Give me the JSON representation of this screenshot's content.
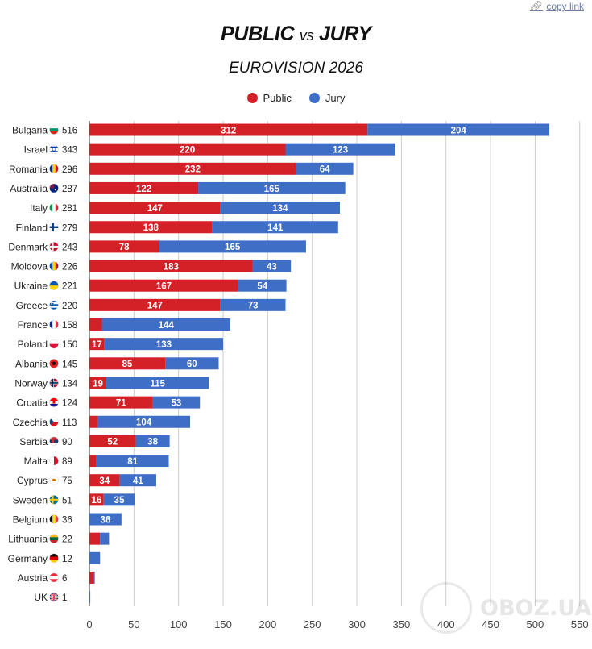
{
  "header": {
    "copy_link_label": "copy link",
    "copy_link_icon": "link-icon"
  },
  "chart_data": {
    "type": "bar",
    "orientation": "horizontal",
    "stacked": true,
    "title_left": "PUBLIC",
    "title_vs": "vs",
    "title_right": "JURY",
    "subtitle": "EUROVISION 2026",
    "legend_position": "top",
    "grid": true,
    "xlim": [
      0,
      550
    ],
    "x_ticks": [
      0,
      50,
      100,
      150,
      200,
      250,
      300,
      350,
      400,
      450,
      500,
      550
    ],
    "categories": [
      "Bulgaria",
      "Israel",
      "Romania",
      "Australia",
      "Italy",
      "Finland",
      "Denmark",
      "Moldova",
      "Ukraine",
      "Greece",
      "France",
      "Poland",
      "Albania",
      "Norway",
      "Croatia",
      "Czechia",
      "Serbia",
      "Malta",
      "Cyprus",
      "Sweden",
      "Belgium",
      "Lithuania",
      "Germany",
      "Austria",
      "UK"
    ],
    "flags": [
      "flag-bulgaria-icon",
      "flag-israel-icon",
      "flag-romania-icon",
      "flag-australia-icon",
      "flag-italy-icon",
      "flag-finland-icon",
      "flag-denmark-icon",
      "flag-moldova-icon",
      "flag-ukraine-icon",
      "flag-greece-icon",
      "flag-france-icon",
      "flag-poland-icon",
      "flag-albania-icon",
      "flag-norway-icon",
      "flag-croatia-icon",
      "flag-czechia-icon",
      "flag-serbia-icon",
      "flag-malta-icon",
      "flag-cyprus-icon",
      "flag-sweden-icon",
      "flag-belgium-icon",
      "flag-lithuania-icon",
      "flag-germany-icon",
      "flag-austria-icon",
      "flag-uk-icon"
    ],
    "totals": [
      516,
      343,
      296,
      287,
      281,
      279,
      243,
      226,
      221,
      220,
      158,
      150,
      145,
      134,
      124,
      113,
      90,
      89,
      75,
      51,
      36,
      22,
      12,
      6,
      1
    ],
    "series": [
      {
        "name": "Public",
        "color": "#d42027",
        "values": [
          312,
          220,
          232,
          122,
          147,
          138,
          78,
          183,
          167,
          147,
          14,
          17,
          85,
          19,
          71,
          9,
          52,
          8,
          34,
          16,
          0,
          12,
          0,
          5,
          0
        ],
        "labels_shown": [
          true,
          true,
          true,
          true,
          true,
          true,
          true,
          true,
          true,
          true,
          false,
          true,
          true,
          true,
          true,
          false,
          true,
          false,
          true,
          true,
          false,
          false,
          false,
          false,
          false
        ]
      },
      {
        "name": "Jury",
        "color": "#3e6ec6",
        "values": [
          204,
          123,
          64,
          165,
          134,
          141,
          165,
          43,
          54,
          73,
          144,
          133,
          60,
          115,
          53,
          104,
          38,
          81,
          41,
          35,
          36,
          10,
          12,
          1,
          1
        ],
        "labels_shown": [
          true,
          true,
          true,
          true,
          true,
          true,
          true,
          true,
          true,
          true,
          true,
          true,
          true,
          true,
          true,
          true,
          true,
          true,
          true,
          true,
          true,
          false,
          false,
          false,
          false
        ]
      }
    ]
  },
  "watermark": {
    "text": "OBOZ.UA"
  }
}
